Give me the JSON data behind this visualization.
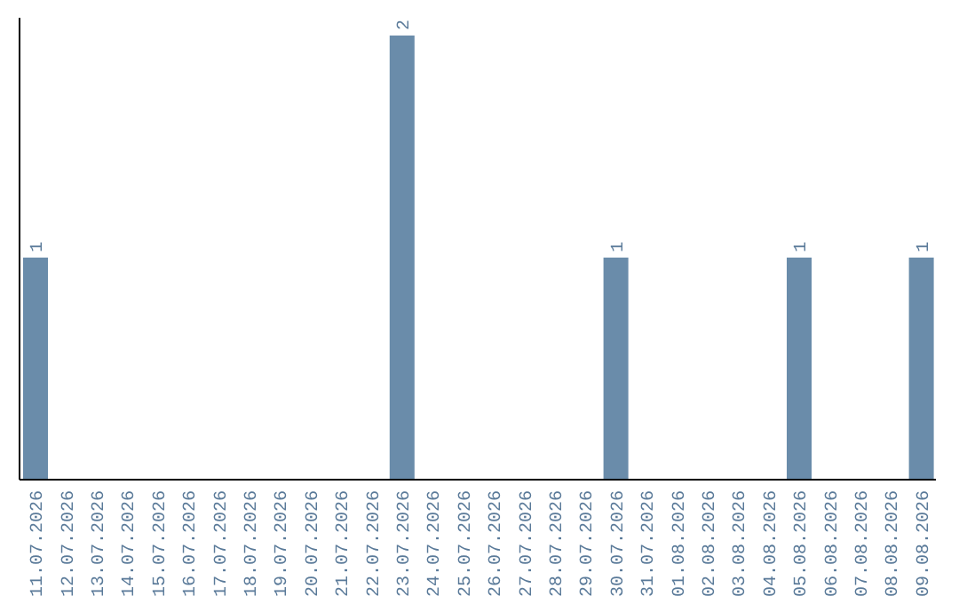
{
  "chart_data": {
    "type": "bar",
    "categories": [
      "11.07.2026",
      "12.07.2026",
      "13.07.2026",
      "14.07.2026",
      "15.07.2026",
      "16.07.2026",
      "17.07.2026",
      "18.07.2026",
      "19.07.2026",
      "20.07.2026",
      "21.07.2026",
      "22.07.2026",
      "23.07.2026",
      "24.07.2026",
      "25.07.2026",
      "26.07.2026",
      "27.07.2026",
      "28.07.2026",
      "29.07.2026",
      "30.07.2026",
      "31.07.2026",
      "01.08.2026",
      "02.08.2026",
      "03.08.2026",
      "04.08.2026",
      "05.08.2026",
      "06.08.2026",
      "07.08.2026",
      "08.08.2026",
      "09.08.2026"
    ],
    "values": [
      1,
      0,
      0,
      0,
      0,
      0,
      0,
      0,
      0,
      0,
      0,
      0,
      2,
      0,
      0,
      0,
      0,
      0,
      0,
      1,
      0,
      0,
      0,
      0,
      0,
      1,
      0,
      0,
      0,
      1
    ],
    "value_labels": [
      "1",
      null,
      null,
      null,
      null,
      null,
      null,
      null,
      null,
      null,
      null,
      null,
      "2",
      null,
      null,
      null,
      null,
      null,
      null,
      "1",
      null,
      null,
      null,
      null,
      null,
      "1",
      null,
      null,
      null,
      "1"
    ],
    "color": "#6a8caa",
    "tick_labels": "x",
    "grid": false,
    "legend": false
  }
}
